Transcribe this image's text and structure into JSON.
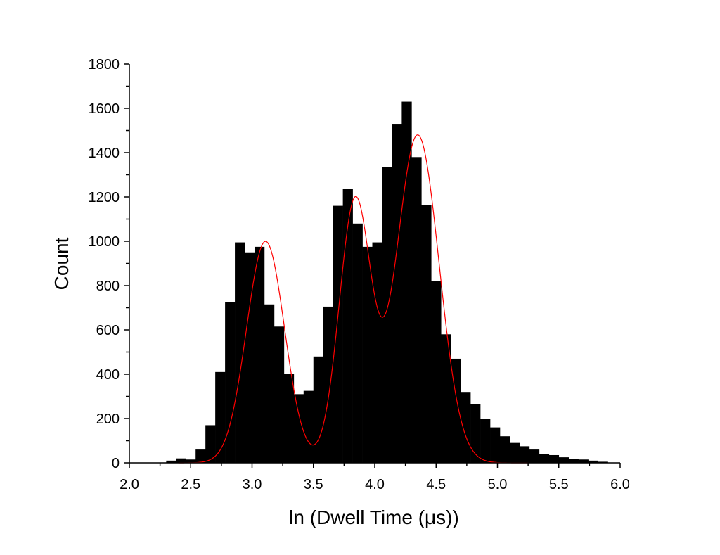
{
  "chart_data": {
    "type": "bar",
    "title": "",
    "xlabel": "ln (Dwell Time (μs))",
    "ylabel": "Count",
    "xlim": [
      2.0,
      6.0
    ],
    "ylim": [
      0,
      1800
    ],
    "xticks": [
      "2.0",
      "2.5",
      "3.0",
      "3.5",
      "4.0",
      "4.5",
      "5.0",
      "5.5",
      "6.0"
    ],
    "yticks": [
      "0",
      "200",
      "400",
      "600",
      "800",
      "1000",
      "1200",
      "1400",
      "1600",
      "1800"
    ],
    "bin_width": 0.08,
    "bins_start": 2.3,
    "values": [
      10,
      20,
      15,
      60,
      170,
      410,
      725,
      995,
      950,
      975,
      715,
      615,
      400,
      310,
      325,
      480,
      705,
      1160,
      1235,
      1080,
      975,
      995,
      1335,
      1530,
      1630,
      1380,
      1165,
      820,
      580,
      470,
      320,
      265,
      200,
      160,
      120,
      90,
      75,
      60,
      40,
      35,
      25,
      18,
      15,
      10,
      5
    ],
    "bar_color": "#000000",
    "fit": {
      "color": "#ff0000",
      "components": [
        {
          "amplitude": 1000,
          "center": 3.11,
          "sigma": 0.155
        },
        {
          "amplitude": 1180,
          "center": 3.84,
          "sigma": 0.13
        },
        {
          "amplitude": 1480,
          "center": 4.35,
          "sigma": 0.175
        }
      ],
      "x_range": [
        2.4,
        5.25
      ]
    }
  }
}
